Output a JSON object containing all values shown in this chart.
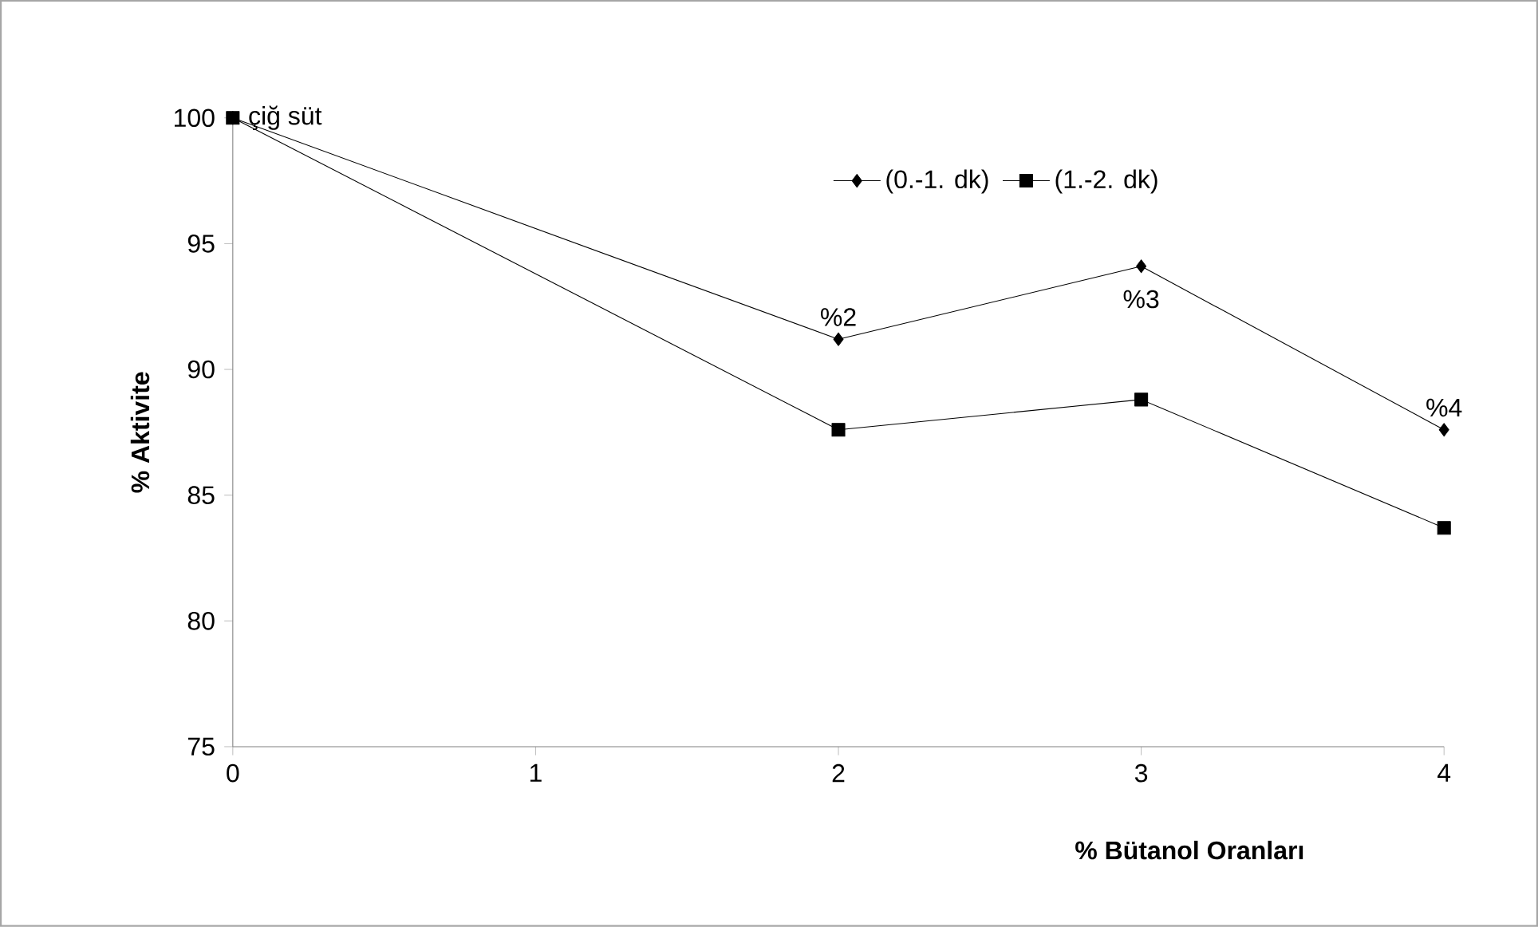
{
  "chart_data": {
    "type": "line",
    "xlabel": "% Bütanol Oranları",
    "ylabel": "% Aktivite",
    "x": [
      0,
      2,
      3,
      4
    ],
    "series": [
      {
        "name": "(0.-1. dk)",
        "color": "#000000",
        "marker": "diamond",
        "values": [
          100,
          91.2,
          94.1,
          87.6
        ]
      },
      {
        "name": "(1.-2. dk)",
        "color": "#000000",
        "marker": "square",
        "values": [
          100,
          87.6,
          88.8,
          83.7
        ]
      }
    ],
    "xlim": [
      0,
      4
    ],
    "xticks": [
      0,
      1,
      2,
      3,
      4
    ],
    "ylim": [
      75,
      100
    ],
    "yticks": [
      75,
      80,
      85,
      90,
      95,
      100
    ],
    "legend": "top right",
    "line_style": "solid",
    "annotations": [
      {
        "text": "çiğ süt",
        "x": 0,
        "y": 100
      },
      {
        "text": "%2",
        "x": 2,
        "y": 91.2
      },
      {
        "text": "%3",
        "x": 3,
        "y": 94.1
      },
      {
        "text": "%4",
        "x": 4,
        "y": 87.6
      }
    ]
  }
}
